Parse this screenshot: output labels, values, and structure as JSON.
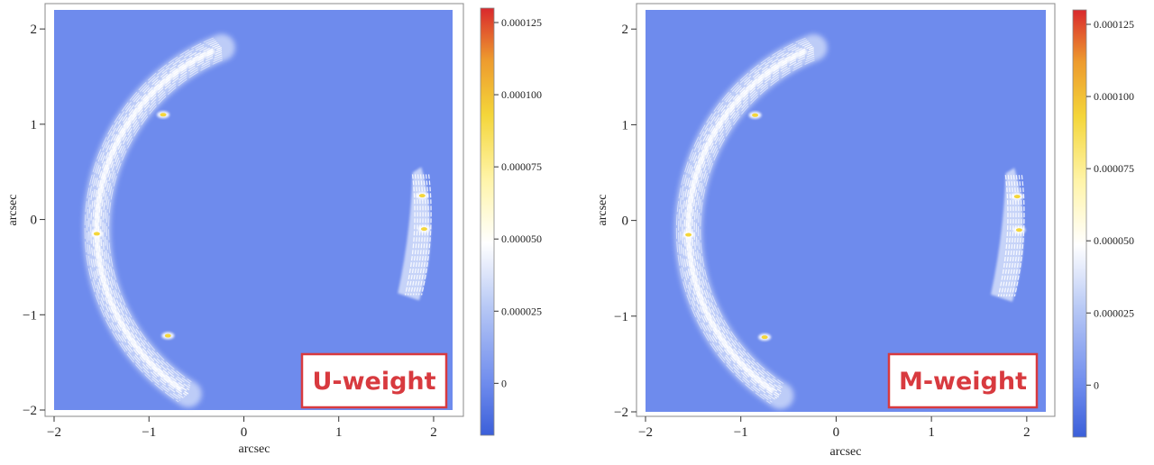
{
  "chart_data": [
    {
      "type": "heatmap",
      "title": "",
      "xlabel": "arcsec",
      "ylabel": "arcsec",
      "xlim": [
        -2,
        2.2
      ],
      "ylim": [
        -2,
        2.2
      ],
      "x_ticks": [
        -2,
        -1,
        0,
        1,
        2
      ],
      "y_ticks": [
        -2,
        -1,
        0,
        1,
        2
      ],
      "x_tick_labels": [
        "−2",
        "−1",
        "0",
        "1",
        "2"
      ],
      "y_tick_labels": [
        "−2",
        "−1",
        "0",
        "1",
        "2"
      ],
      "background_value": 0,
      "annotation": "U-weight",
      "colorbar": {
        "range": [
          -1.8e-05,
          0.00013
        ],
        "ticks": [
          0,
          2.5e-05,
          5e-05,
          7.5e-05,
          0.0001,
          0.000125
        ],
        "tick_labels": [
          "0",
          "0.000025",
          "0.000050",
          "0.000075",
          "0.000100",
          "0.000125"
        ],
        "colors": [
          "#3b5fd9",
          "#6e8bed",
          "#b7c8f5",
          "#ffffff",
          "#fff4a8",
          "#f4d63a",
          "#ed9a2e",
          "#d9282d"
        ]
      },
      "features": [
        {
          "name": "arc",
          "center": [
            0.5,
            -0.1
          ],
          "radius": 2.05,
          "theta_range_deg": [
            111,
            238
          ],
          "peak_value": 6e-05
        },
        {
          "name": "counter-image",
          "x_range": [
            1.6,
            2.05
          ],
          "y_range": [
            -0.85,
            0.55
          ],
          "peak_value": 6e-05
        },
        {
          "name": "hotspots",
          "points": [
            [
              -0.85,
              1.1
            ],
            [
              -1.55,
              -0.15
            ],
            [
              -0.8,
              -1.22
            ],
            [
              1.9,
              -0.1
            ],
            [
              1.88,
              0.25
            ]
          ],
          "peak_value": 9e-05
        }
      ]
    },
    {
      "type": "heatmap",
      "title": "",
      "xlabel": "arcsec",
      "ylabel": "arcsec",
      "xlim": [
        -2,
        2.2
      ],
      "ylim": [
        -2,
        2.2
      ],
      "x_ticks": [
        -2,
        -1,
        0,
        1,
        2
      ],
      "y_ticks": [
        -2,
        -1,
        0,
        1,
        2
      ],
      "x_tick_labels": [
        "−2",
        "−1",
        "0",
        "1",
        "2"
      ],
      "y_tick_labels": [
        "−2",
        "−1",
        "0",
        "1",
        "2"
      ],
      "background_value": 0,
      "annotation": "M-weight",
      "colorbar": {
        "range": [
          -1.8e-05,
          0.00013
        ],
        "ticks": [
          0,
          2.5e-05,
          5e-05,
          7.5e-05,
          0.0001,
          0.000125
        ],
        "tick_labels": [
          "0",
          "0.000025",
          "0.000050",
          "0.000075",
          "0.000100",
          "0.000125"
        ],
        "colors": [
          "#3b5fd9",
          "#6e8bed",
          "#b7c8f5",
          "#ffffff",
          "#fff4a8",
          "#f4d63a",
          "#ed9a2e",
          "#d9282d"
        ]
      },
      "features": [
        {
          "name": "arc",
          "center": [
            0.5,
            -0.1
          ],
          "radius": 2.05,
          "theta_range_deg": [
            111,
            238
          ],
          "peak_value": 6e-05
        },
        {
          "name": "counter-image",
          "x_range": [
            1.6,
            2.05
          ],
          "y_range": [
            -0.85,
            0.55
          ],
          "peak_value": 6e-05
        },
        {
          "name": "hotspots",
          "points": [
            [
              -0.85,
              1.1
            ],
            [
              -1.55,
              -0.15
            ],
            [
              -0.75,
              -1.22
            ],
            [
              1.92,
              -0.1
            ],
            [
              1.9,
              0.25
            ]
          ],
          "peak_value": 9e-05
        }
      ]
    }
  ]
}
